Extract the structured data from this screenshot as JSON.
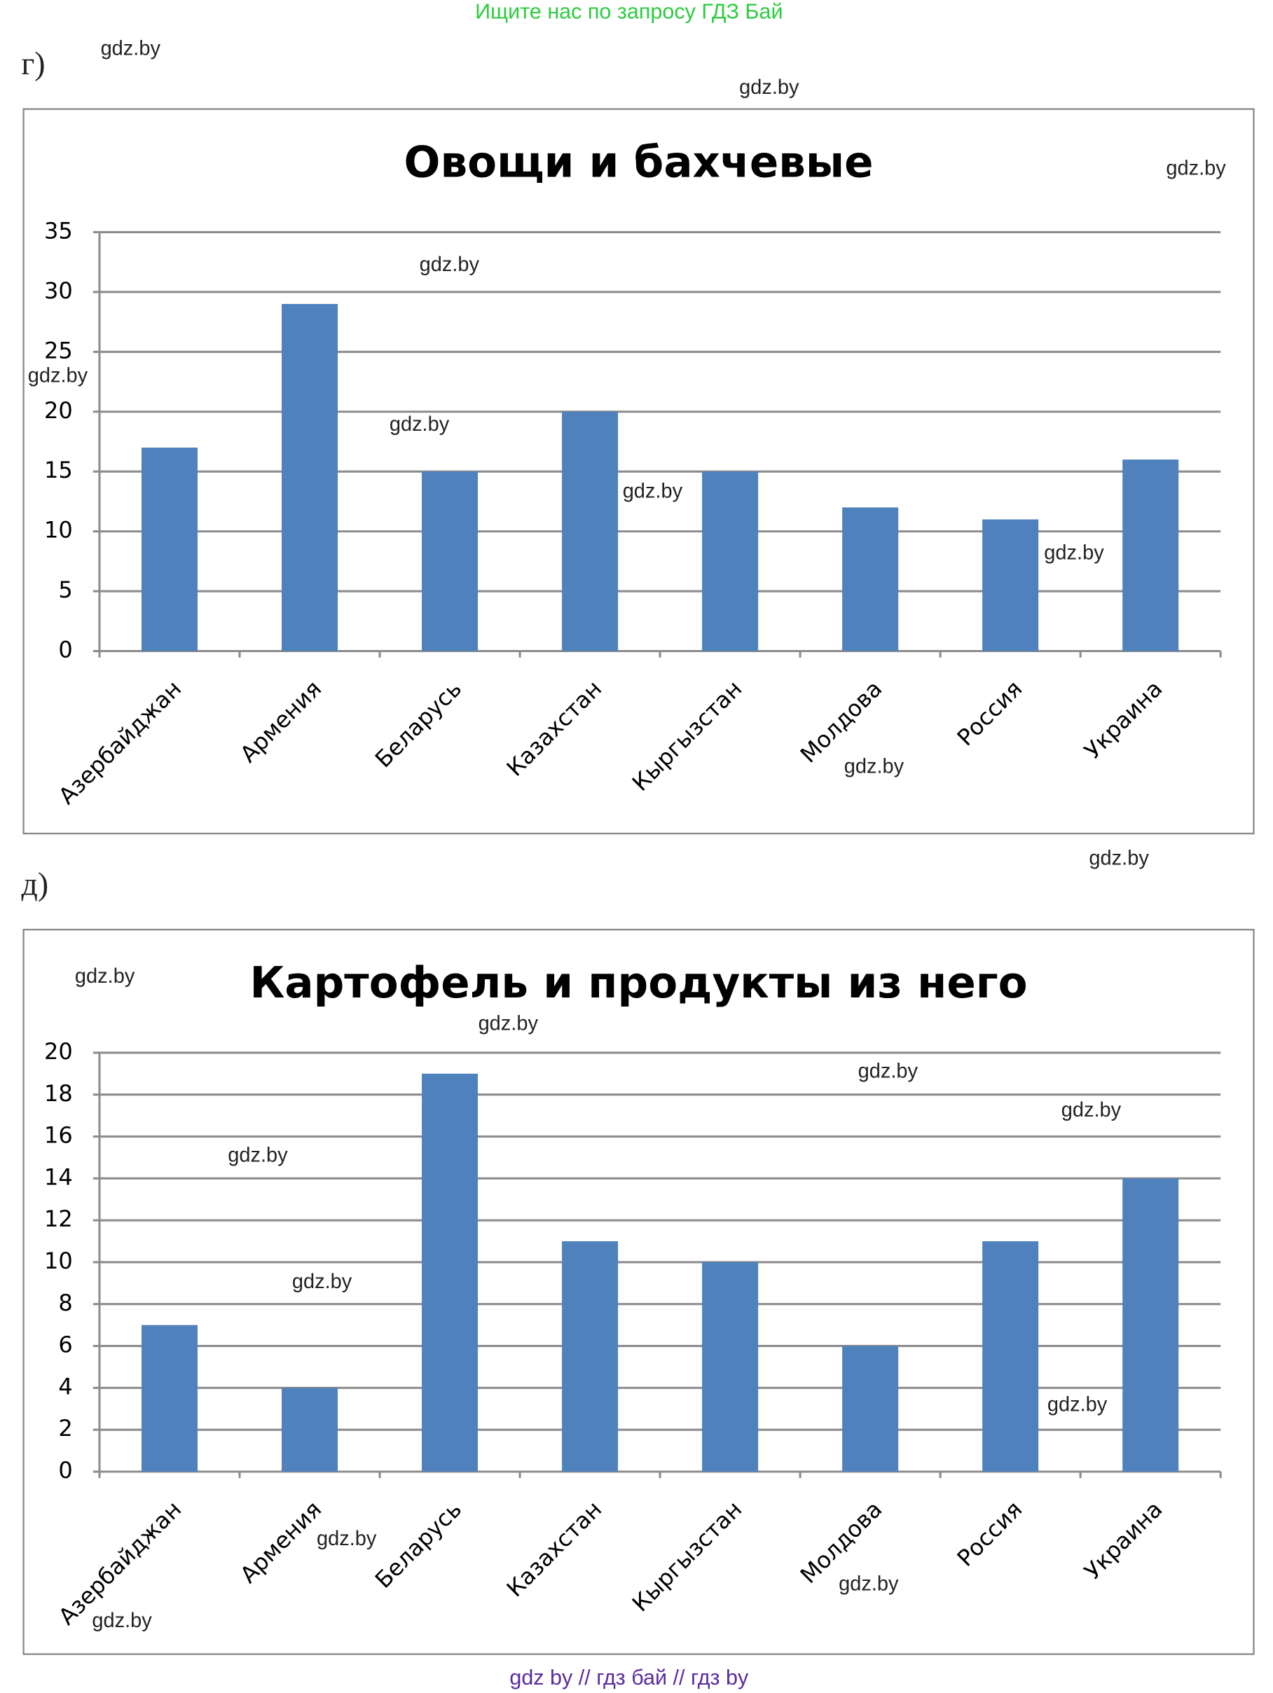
{
  "header": "Ищите нас по запросу ГДЗ Бай",
  "labels": [
    "г)",
    "д)"
  ],
  "chart_data": [
    {
      "type": "bar",
      "title": "Овощи и бахчевые",
      "categories": [
        "Азербайджан",
        "Армения",
        "Беларусь",
        "Казахстан",
        "Кыргызстан",
        "Молдова",
        "Россия",
        "Украина"
      ],
      "values": [
        17,
        29,
        15,
        20,
        15,
        12,
        11,
        16
      ],
      "color": "#4f81bd",
      "ylim": [
        0,
        35
      ],
      "yticks": [
        0,
        5,
        10,
        15,
        20,
        25,
        30,
        35
      ],
      "grid": true
    },
    {
      "type": "bar",
      "title": "Картофель и продукты из него",
      "categories": [
        "Азербайджан",
        "Армения",
        "Беларусь",
        "Казахстан",
        "Кыргызстан",
        "Молдова",
        "Россия",
        "Украина"
      ],
      "values": [
        7,
        4,
        19,
        11,
        10,
        6,
        11,
        14
      ],
      "color": "#4f81bd",
      "ylim": [
        0,
        20
      ],
      "yticks": [
        0,
        2,
        4,
        6,
        8,
        10,
        12,
        14,
        16,
        18,
        20
      ],
      "grid": true
    }
  ],
  "watermarks": [
    "gdz.by",
    "gdz.by",
    "gdz.by",
    "gdz.by",
    "gdz.by",
    "gdz.by",
    "gdz.by",
    "gdz.by",
    "gdz.by",
    "gdz.by",
    "gdz.by",
    "gdz.by",
    "gdz.by",
    "gdz.by",
    "gdz.by",
    "gdz.by",
    "gdz.by",
    "gdz.by",
    "gdz.by",
    "gdz.by"
  ],
  "footer": "gdz by  //  гдз бай  //  гдз by"
}
